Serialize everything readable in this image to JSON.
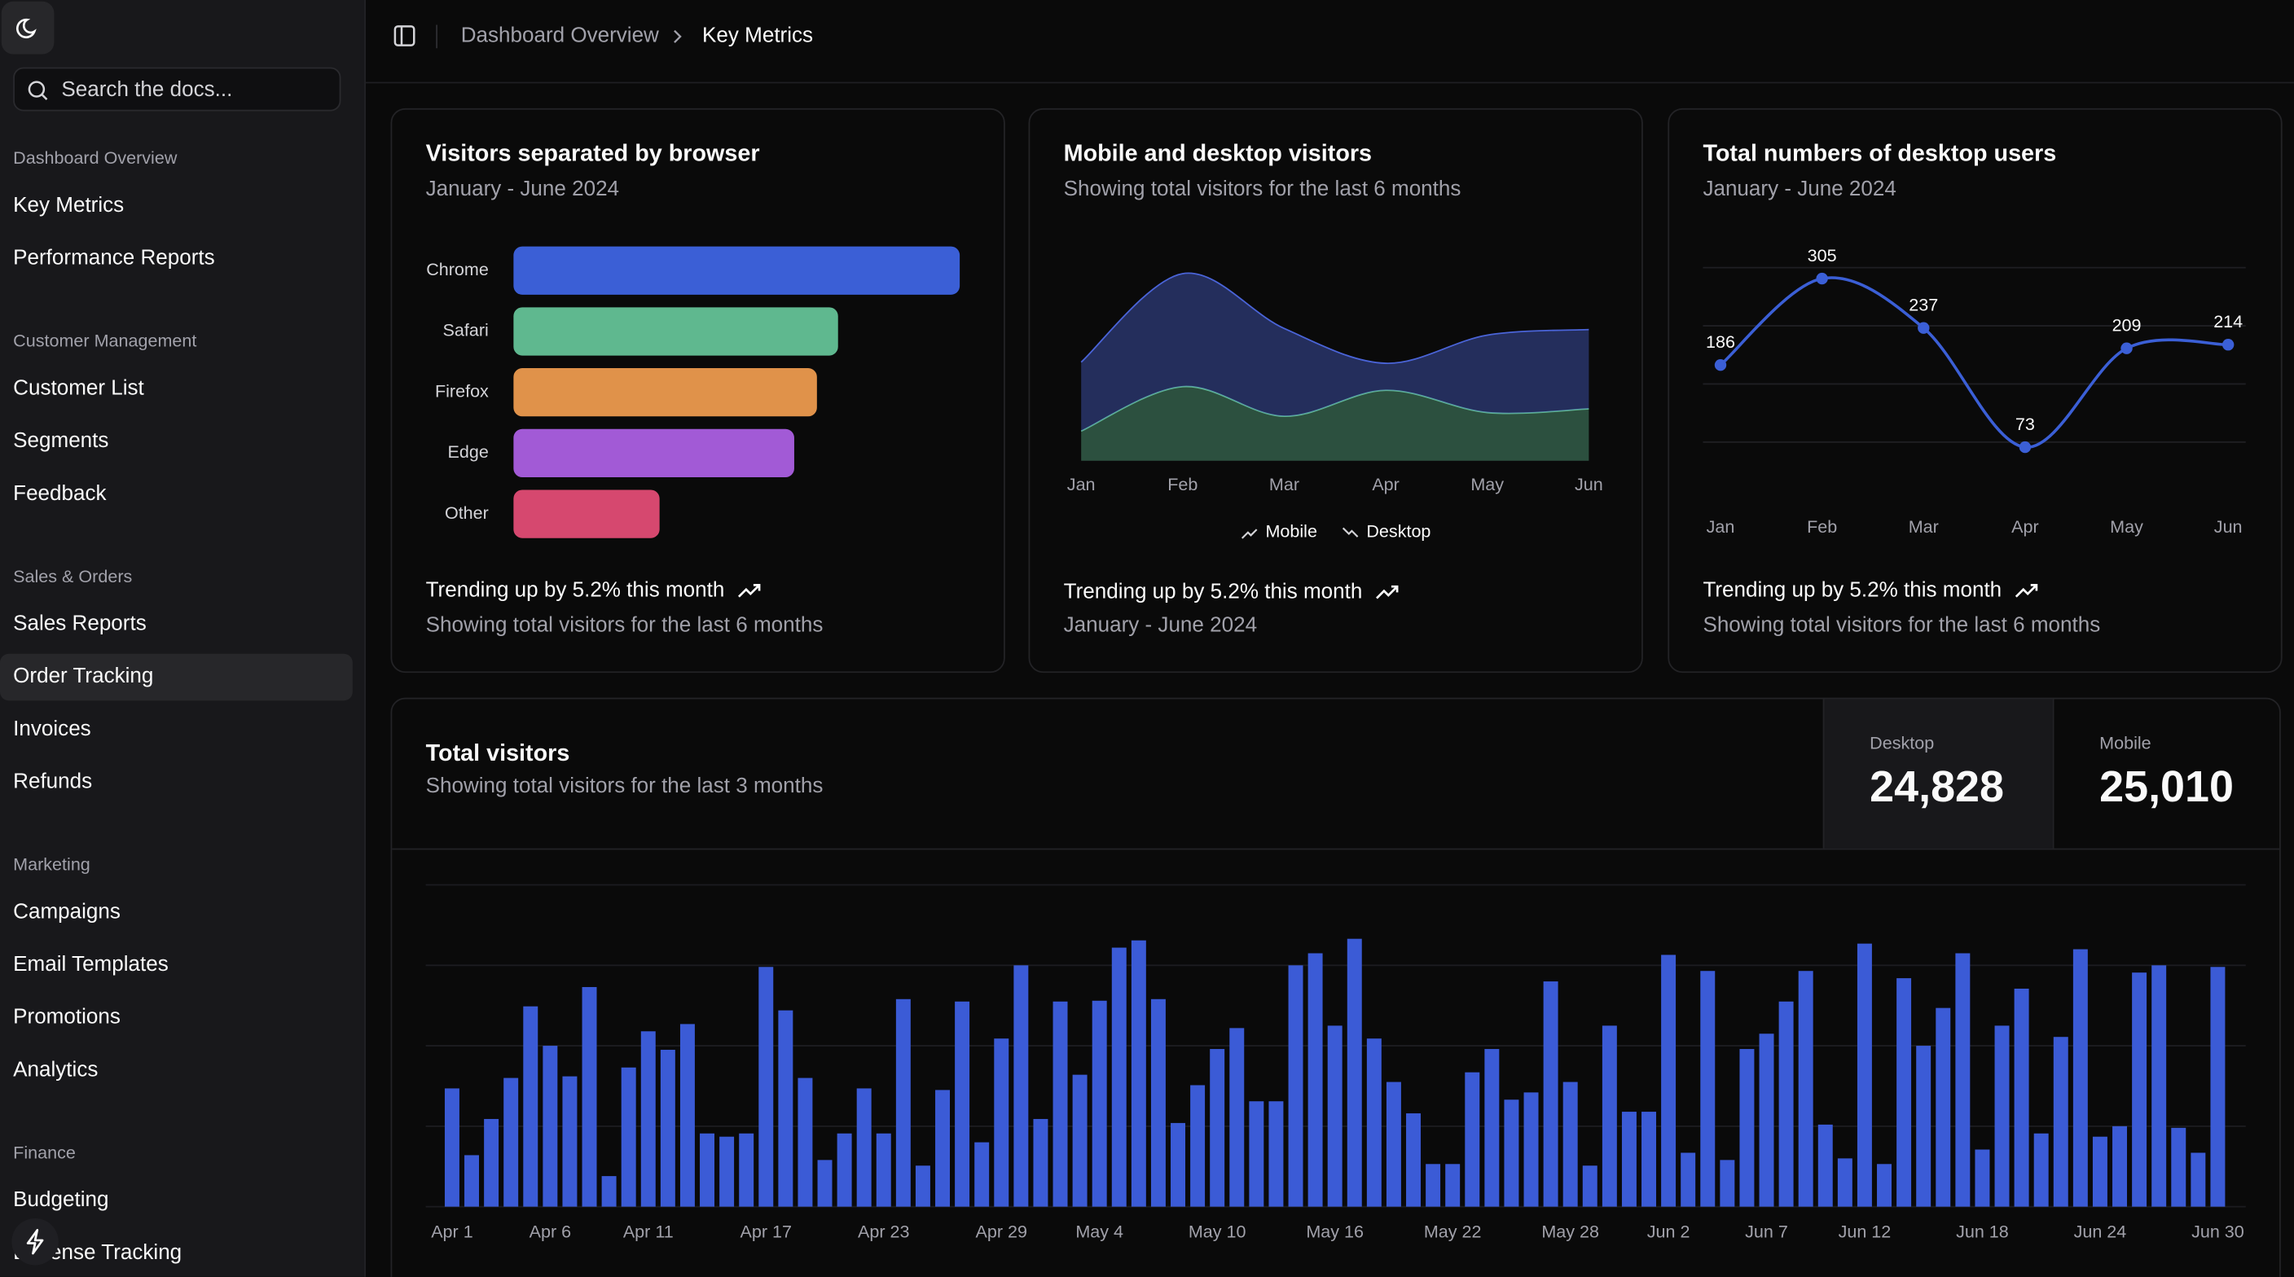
{
  "sidebar": {
    "search_placeholder": "Search the docs...",
    "groups": [
      {
        "label": "Dashboard Overview",
        "items": [
          "Key Metrics",
          "Performance Reports"
        ]
      },
      {
        "label": "Customer Management",
        "items": [
          "Customer List",
          "Segments",
          "Feedback"
        ]
      },
      {
        "label": "Sales & Orders",
        "items": [
          "Sales Reports",
          "Order Tracking",
          "Invoices",
          "Refunds"
        ]
      },
      {
        "label": "Marketing",
        "items": [
          "Campaigns",
          "Email Templates",
          "Promotions",
          "Analytics"
        ]
      },
      {
        "label": "Finance",
        "items": [
          "Budgeting",
          "Expense Tracking"
        ]
      }
    ]
  },
  "breadcrumb": [
    "Dashboard Overview",
    "Key Metrics"
  ],
  "cards": [
    {
      "title": "Visitors separated by browser",
      "subtitle": "January - June 2024",
      "trend": "Trending up by 5.2% this month",
      "note": "Showing total visitors for the last 6 months",
      "chart_data": {
        "type": "hbar",
        "categories": [
          "Chrome",
          "Safari",
          "Firefox",
          "Edge",
          "Other"
        ],
        "values": [
          275,
          200,
          187,
          173,
          90
        ],
        "colors": [
          "#3b5fd6",
          "#5fb88f",
          "#e0924a",
          "#a25ad6",
          "#d6486f"
        ],
        "xlim": [
          0,
          275
        ]
      }
    },
    {
      "title": "Mobile and desktop visitors",
      "subtitle": "Showing total visitors for the last 6 months",
      "trend": "Trending up by 5.2% this month",
      "note": "January - June 2024",
      "chart_data": {
        "type": "area",
        "stacked": true,
        "categories": [
          "Jan",
          "Feb",
          "Mar",
          "Apr",
          "May",
          "Jun"
        ],
        "series": [
          {
            "name": "Mobile",
            "color": "#5fb88f",
            "values": [
              80,
              200,
              120,
              190,
              130,
              140
            ]
          },
          {
            "name": "Desktop",
            "color": "#4a64d8",
            "values": [
              186,
              305,
              237,
              73,
              209,
              214
            ]
          }
        ],
        "ylim": [
          0,
          600
        ]
      }
    },
    {
      "title": "Total numbers of desktop users",
      "subtitle": "January - June 2024",
      "trend": "Trending up by 5.2% this month",
      "note": "Showing total visitors for the last 6 months",
      "chart_data": {
        "type": "line",
        "categories": [
          "Jan",
          "Feb",
          "Mar",
          "Apr",
          "May",
          "Jun"
        ],
        "values": [
          186,
          305,
          237,
          73,
          209,
          214
        ],
        "color": "#3b5fd6",
        "ylim": [
          0,
          320
        ],
        "yticks": [
          80,
          160,
          240,
          320
        ],
        "grid": true
      }
    }
  ],
  "total": {
    "title": "Total visitors",
    "subtitle": "Showing total visitors for the last 3 months",
    "stats": [
      {
        "label": "Desktop",
        "value": "24,828"
      },
      {
        "label": "Mobile",
        "value": "25,010"
      }
    ],
    "chart_data": {
      "type": "bar",
      "color": "#3b5bd6",
      "ylim": [
        0,
        400
      ],
      "yticks": [
        0,
        100,
        200,
        300,
        400
      ],
      "grid": true,
      "categories": [
        "Apr 1",
        null,
        null,
        null,
        null,
        "Apr 6",
        null,
        null,
        null,
        null,
        "Apr 11",
        null,
        null,
        null,
        null,
        null,
        "Apr 17",
        null,
        null,
        null,
        null,
        null,
        "Apr 23",
        null,
        null,
        null,
        null,
        null,
        "Apr 29",
        null,
        null,
        null,
        null,
        "May 4",
        null,
        null,
        null,
        null,
        null,
        "May 10",
        null,
        null,
        null,
        null,
        null,
        "May 16",
        null,
        null,
        null,
        null,
        null,
        "May 22",
        null,
        null,
        null,
        null,
        null,
        "May 28",
        null,
        null,
        null,
        null,
        "Jun 2",
        null,
        null,
        null,
        null,
        "Jun 7",
        null,
        null,
        null,
        null,
        "Jun 12",
        null,
        null,
        null,
        null,
        null,
        "Jun 18",
        null,
        null,
        null,
        null,
        null,
        "Jun 24",
        null,
        null,
        null,
        null,
        null,
        "Jun 30"
      ],
      "values": [
        147,
        64,
        109,
        160,
        249,
        200,
        162,
        273,
        38,
        173,
        218,
        195,
        227,
        91,
        87,
        91,
        298,
        244,
        160,
        58,
        91,
        147,
        91,
        258,
        51,
        145,
        255,
        80,
        209,
        300,
        109,
        255,
        164,
        256,
        322,
        331,
        258,
        104,
        151,
        196,
        222,
        131,
        131,
        300,
        315,
        225,
        333,
        209,
        155,
        116,
        53,
        53,
        167,
        196,
        133,
        142,
        280,
        155,
        51,
        225,
        118,
        118,
        313,
        67,
        293,
        58,
        196,
        215,
        255,
        293,
        102,
        60,
        327,
        53,
        284,
        200,
        247,
        315,
        71,
        225,
        271,
        91,
        211,
        320,
        87,
        100,
        291,
        300,
        98,
        67,
        298
      ]
    }
  }
}
